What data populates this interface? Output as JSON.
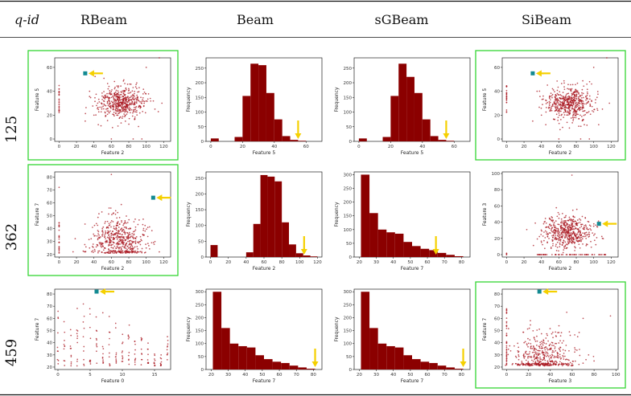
{
  "header": {
    "qid_label": "q-id",
    "columns": [
      "RBeam",
      "Beam",
      "sGBeam",
      "SiBeam"
    ]
  },
  "rows": [
    {
      "qid": "125",
      "panels": [
        {
          "type": "scatter",
          "highlight": true,
          "xlabel": "Feature 2",
          "ylabel": "Feature 5",
          "xticks": [
            0,
            20,
            40,
            60,
            80,
            100,
            120
          ],
          "yticks": [
            0,
            20,
            40,
            60
          ],
          "xlim": [
            -5,
            128
          ],
          "ylim": [
            -2,
            68
          ],
          "cluster": {
            "cx": 72,
            "cy": 30,
            "sx": 13,
            "sy": 7,
            "n": 520
          },
          "zero_col": {
            "x": 0,
            "ymin": 22,
            "ymax": 45,
            "n": 24
          },
          "outliers": [
            [
              30,
              15
            ],
            [
              35,
              40
            ],
            [
              40,
              20
            ],
            [
              45,
              12
            ],
            [
              110,
              25
            ],
            [
              118,
              30
            ],
            [
              60,
              0
            ],
            [
              85,
              0
            ],
            [
              95,
              0
            ],
            [
              100,
              60
            ],
            [
              115,
              68
            ]
          ],
          "marker": {
            "x": 30,
            "y": 55
          },
          "arrow_dir": "left"
        },
        {
          "type": "hist",
          "highlight": false,
          "xlabel": "Feature 5",
          "ylabel": "Frequency",
          "xticks": [
            0,
            20,
            40,
            60
          ],
          "yticks": [
            0,
            50,
            100,
            150,
            200,
            250
          ],
          "xlim": [
            -3,
            70
          ],
          "ylim": [
            0,
            285
          ],
          "bins": [
            [
              0,
              5,
              10
            ],
            [
              5,
              15,
              0
            ],
            [
              15,
              20,
              15
            ],
            [
              20,
              25,
              155
            ],
            [
              25,
              30,
              265
            ],
            [
              30,
              35,
              260
            ],
            [
              35,
              40,
              165
            ],
            [
              40,
              45,
              75
            ],
            [
              45,
              50,
              18
            ],
            [
              50,
              55,
              5
            ],
            [
              55,
              60,
              2
            ]
          ],
          "arrow_x": 55
        },
        {
          "type": "hist",
          "highlight": false,
          "xlabel": "Feature 5",
          "ylabel": "Frequency",
          "xticks": [
            0,
            20,
            40,
            60
          ],
          "yticks": [
            0,
            50,
            100,
            150,
            200,
            250
          ],
          "xlim": [
            -3,
            70
          ],
          "ylim": [
            0,
            285
          ],
          "bins": [
            [
              0,
              5,
              10
            ],
            [
              5,
              15,
              0
            ],
            [
              15,
              20,
              15
            ],
            [
              20,
              25,
              155
            ],
            [
              25,
              30,
              265
            ],
            [
              30,
              35,
              220
            ],
            [
              35,
              40,
              165
            ],
            [
              40,
              45,
              75
            ],
            [
              45,
              50,
              18
            ],
            [
              50,
              55,
              5
            ],
            [
              55,
              60,
              2
            ]
          ],
          "arrow_x": 55
        },
        {
          "type": "scatter",
          "highlight": true,
          "xlabel": "Feature 2",
          "ylabel": "Feature 5",
          "xticks": [
            0,
            20,
            40,
            60,
            80,
            100,
            120
          ],
          "yticks": [
            0,
            20,
            40,
            60
          ],
          "xlim": [
            -5,
            128
          ],
          "ylim": [
            -2,
            68
          ],
          "cluster": {
            "cx": 72,
            "cy": 30,
            "sx": 13,
            "sy": 7,
            "n": 520
          },
          "zero_col": {
            "x": 0,
            "ymin": 22,
            "ymax": 45,
            "n": 24
          },
          "outliers": [
            [
              30,
              15
            ],
            [
              35,
              40
            ],
            [
              40,
              20
            ],
            [
              45,
              12
            ],
            [
              110,
              25
            ],
            [
              118,
              30
            ],
            [
              60,
              0
            ],
            [
              85,
              0
            ],
            [
              95,
              0
            ],
            [
              100,
              60
            ],
            [
              115,
              68
            ]
          ],
          "marker": {
            "x": 30,
            "y": 55
          },
          "arrow_dir": "left"
        }
      ]
    },
    {
      "qid": "362",
      "panels": [
        {
          "type": "scatter",
          "highlight": true,
          "xlabel": "Feature 2",
          "ylabel": "Feature 7",
          "xticks": [
            0,
            20,
            40,
            60,
            80,
            100,
            120
          ],
          "yticks": [
            20,
            30,
            40,
            50,
            60,
            70,
            80
          ],
          "xlim": [
            -5,
            128
          ],
          "ylim": [
            18,
            84
          ],
          "cluster": {
            "cx": 68,
            "cy": 30,
            "sx": 16,
            "sy": 9,
            "n": 520,
            "floor": 21
          },
          "zero_col": {
            "x": 0,
            "ymin": 21,
            "ymax": 45,
            "n": 24
          },
          "outliers": [
            [
              0,
              72
            ],
            [
              30,
              22
            ],
            [
              35,
              25
            ],
            [
              100,
              25
            ],
            [
              110,
              30
            ],
            [
              115,
              22
            ],
            [
              60,
              82
            ]
          ],
          "marker": {
            "x": 108,
            "y": 64
          },
          "arrow_dir": "left"
        },
        {
          "type": "hist",
          "highlight": false,
          "xlabel": "Feature 2",
          "ylabel": "Frequency",
          "xticks": [
            0,
            20,
            40,
            60,
            80,
            100,
            120
          ],
          "yticks": [
            0,
            50,
            100,
            150,
            200,
            250
          ],
          "xlim": [
            -5,
            125
          ],
          "ylim": [
            0,
            270
          ],
          "bins": [
            [
              0,
              8,
              38
            ],
            [
              8,
              40,
              0
            ],
            [
              40,
              48,
              15
            ],
            [
              48,
              56,
              105
            ],
            [
              56,
              64,
              260
            ],
            [
              64,
              72,
              255
            ],
            [
              72,
              80,
              240
            ],
            [
              80,
              88,
              110
            ],
            [
              88,
              96,
              40
            ],
            [
              96,
              104,
              12
            ],
            [
              104,
              112,
              5
            ],
            [
              112,
              120,
              2
            ]
          ],
          "arrow_x": 105
        },
        {
          "type": "hist",
          "highlight": false,
          "xlabel": "Feature 7",
          "ylabel": "Frequency",
          "xticks": [
            20,
            30,
            40,
            50,
            60,
            70,
            80
          ],
          "yticks": [
            0,
            50,
            100,
            150,
            200,
            250,
            300
          ],
          "xlim": [
            17,
            85
          ],
          "ylim": [
            0,
            310
          ],
          "bins": [
            [
              21,
              26,
              300
            ],
            [
              26,
              31,
              160
            ],
            [
              31,
              36,
              100
            ],
            [
              36,
              41,
              90
            ],
            [
              41,
              46,
              85
            ],
            [
              46,
              51,
              55
            ],
            [
              51,
              56,
              40
            ],
            [
              56,
              61,
              30
            ],
            [
              61,
              66,
              25
            ],
            [
              66,
              71,
              15
            ],
            [
              71,
              76,
              8
            ],
            [
              76,
              81,
              3
            ]
          ],
          "arrow_x": 65
        },
        {
          "type": "scatter",
          "highlight": false,
          "xlabel": "Feature 2",
          "ylabel": "Feature 3",
          "xticks": [
            0,
            20,
            40,
            60,
            80,
            100,
            120
          ],
          "yticks": [
            0,
            20,
            40,
            60,
            80,
            100
          ],
          "xlim": [
            -5,
            128
          ],
          "ylim": [
            -3,
            102
          ],
          "cluster": {
            "cx": 70,
            "cy": 28,
            "sx": 14,
            "sy": 10,
            "n": 520
          },
          "zero_col": {
            "x": 0,
            "ymin": 0,
            "ymax": 2,
            "n": 3
          },
          "zero_row": {
            "y": 0,
            "xmin": 35,
            "xmax": 115,
            "n": 60
          },
          "outliers": [
            [
              75,
              98
            ],
            [
              0,
              0
            ],
            [
              40,
              15
            ],
            [
              100,
              35
            ],
            [
              110,
              20
            ]
          ],
          "marker": {
            "x": 106,
            "y": 38
          },
          "arrow_dir": "left"
        }
      ]
    },
    {
      "qid": "459",
      "panels": [
        {
          "type": "scatter",
          "highlight": false,
          "xlabel": "Feature 0",
          "ylabel": "Feature 7",
          "xticks": [
            0,
            5,
            10,
            15
          ],
          "yticks": [
            20,
            30,
            40,
            50,
            60,
            70,
            80
          ],
          "xlim": [
            -0.5,
            17.5
          ],
          "ylim": [
            18,
            84
          ],
          "discrete": {
            "xs": [
              0,
              1,
              2,
              3,
              4,
              5,
              6,
              7,
              8,
              9,
              10,
              11,
              12,
              13,
              14,
              15,
              16,
              17
            ],
            "ymin": 21,
            "ymaxs": [
              68,
              60,
              65,
              70,
              72,
              68,
              70,
              72,
              65,
              62,
              58,
              55,
              50,
              48,
              40,
              35,
              30,
              45
            ],
            "n": 10
          },
          "outliers": [],
          "marker": {
            "x": 6,
            "y": 82
          },
          "arrow_dir": "left"
        },
        {
          "type": "hist",
          "highlight": false,
          "xlabel": "Feature 7",
          "ylabel": "Frequency",
          "xticks": [
            20,
            30,
            40,
            50,
            60,
            70,
            80
          ],
          "yticks": [
            0,
            50,
            100,
            150,
            200,
            250,
            300
          ],
          "xlim": [
            17,
            85
          ],
          "ylim": [
            0,
            310
          ],
          "bins": [
            [
              21,
              26,
              300
            ],
            [
              26,
              31,
              160
            ],
            [
              31,
              36,
              100
            ],
            [
              36,
              41,
              90
            ],
            [
              41,
              46,
              85
            ],
            [
              46,
              51,
              55
            ],
            [
              51,
              56,
              40
            ],
            [
              56,
              61,
              30
            ],
            [
              61,
              66,
              25
            ],
            [
              66,
              71,
              15
            ],
            [
              71,
              76,
              8
            ],
            [
              76,
              81,
              3
            ]
          ],
          "arrow_x": 81
        },
        {
          "type": "hist",
          "highlight": false,
          "xlabel": "Feature 7",
          "ylabel": "Frequency",
          "xticks": [
            20,
            30,
            40,
            50,
            60,
            70,
            80
          ],
          "yticks": [
            0,
            50,
            100,
            150,
            200,
            250,
            300
          ],
          "xlim": [
            17,
            85
          ],
          "ylim": [
            0,
            310
          ],
          "bins": [
            [
              21,
              26,
              300
            ],
            [
              26,
              31,
              160
            ],
            [
              31,
              36,
              100
            ],
            [
              36,
              41,
              90
            ],
            [
              41,
              46,
              85
            ],
            [
              46,
              51,
              55
            ],
            [
              51,
              56,
              40
            ],
            [
              56,
              61,
              30
            ],
            [
              61,
              66,
              25
            ],
            [
              66,
              71,
              15
            ],
            [
              71,
              76,
              8
            ],
            [
              76,
              81,
              3
            ]
          ],
          "arrow_x": 81
        },
        {
          "type": "scatter",
          "highlight": true,
          "xlabel": "Feature 3",
          "ylabel": "Feature 7",
          "xticks": [
            0,
            20,
            40,
            60,
            80,
            100
          ],
          "yticks": [
            20,
            30,
            40,
            50,
            60,
            70,
            80
          ],
          "xlim": [
            -4,
            102
          ],
          "ylim": [
            18,
            84
          ],
          "cluster": {
            "cx": 32,
            "cy": 28,
            "sx": 14,
            "sy": 10,
            "n": 460,
            "floor": 21
          },
          "zero_col": {
            "x": 0,
            "ymin": 21,
            "ymax": 68,
            "n": 40
          },
          "outliers": [
            [
              95,
              62
            ],
            [
              70,
              60
            ],
            [
              65,
              45
            ],
            [
              75,
              30
            ],
            [
              80,
              25
            ],
            [
              55,
              65
            ]
          ],
          "marker": {
            "x": 30,
            "y": 82
          },
          "arrow_dir": "left"
        }
      ]
    }
  ],
  "colors": {
    "data": "#8b0000",
    "scatter": "#a8141e",
    "highlight": "#34d633",
    "marker": "#138a92",
    "arrow": "#f5d000",
    "rule": "#111111"
  }
}
